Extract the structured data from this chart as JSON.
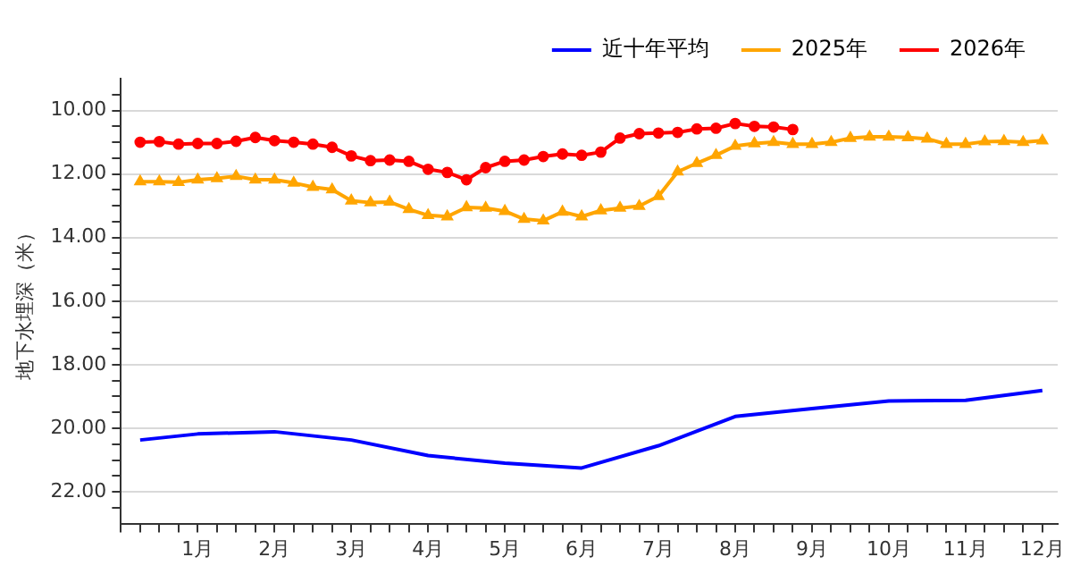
{
  "chart_data": {
    "type": "line",
    "ylabel": "地下水埋深（米）",
    "xlim": [
      0,
      12.2
    ],
    "ylim": [
      23,
      9
    ],
    "xticks": [
      {
        "value": 0,
        "label": null
      },
      {
        "value": 0.25,
        "label": null
      },
      {
        "value": 0.5,
        "label": null
      },
      {
        "value": 0.75,
        "label": null
      },
      {
        "value": 1,
        "label": "1月"
      },
      {
        "value": 1.25,
        "label": null
      },
      {
        "value": 1.5,
        "label": null
      },
      {
        "value": 1.75,
        "label": null
      },
      {
        "value": 2,
        "label": "2月"
      },
      {
        "value": 2.25,
        "label": null
      },
      {
        "value": 2.5,
        "label": null
      },
      {
        "value": 2.75,
        "label": null
      },
      {
        "value": 3,
        "label": "3月"
      },
      {
        "value": 3.25,
        "label": null
      },
      {
        "value": 3.5,
        "label": null
      },
      {
        "value": 3.75,
        "label": null
      },
      {
        "value": 4,
        "label": "4月"
      },
      {
        "value": 4.25,
        "label": null
      },
      {
        "value": 4.5,
        "label": null
      },
      {
        "value": 4.75,
        "label": null
      },
      {
        "value": 5,
        "label": "5月"
      },
      {
        "value": 5.25,
        "label": null
      },
      {
        "value": 5.5,
        "label": null
      },
      {
        "value": 5.75,
        "label": null
      },
      {
        "value": 6,
        "label": "6月"
      },
      {
        "value": 6.25,
        "label": null
      },
      {
        "value": 6.5,
        "label": null
      },
      {
        "value": 6.75,
        "label": null
      },
      {
        "value": 7,
        "label": "7月"
      },
      {
        "value": 7.25,
        "label": null
      },
      {
        "value": 7.5,
        "label": null
      },
      {
        "value": 7.75,
        "label": null
      },
      {
        "value": 8,
        "label": "8月"
      },
      {
        "value": 8.25,
        "label": null
      },
      {
        "value": 8.5,
        "label": null
      },
      {
        "value": 8.75,
        "label": null
      },
      {
        "value": 9,
        "label": "9月"
      },
      {
        "value": 9.25,
        "label": null
      },
      {
        "value": 9.5,
        "label": null
      },
      {
        "value": 9.75,
        "label": null
      },
      {
        "value": 10,
        "label": "10月"
      },
      {
        "value": 10.25,
        "label": null
      },
      {
        "value": 10.5,
        "label": null
      },
      {
        "value": 10.75,
        "label": null
      },
      {
        "value": 11,
        "label": "11月"
      },
      {
        "value": 11.25,
        "label": null
      },
      {
        "value": 11.5,
        "label": null
      },
      {
        "value": 11.75,
        "label": null
      },
      {
        "value": 12,
        "label": "12月"
      }
    ],
    "yticks": [
      {
        "value": 9.5,
        "label": null
      },
      {
        "value": 10,
        "label": "10.00"
      },
      {
        "value": 10.5,
        "label": null
      },
      {
        "value": 11,
        "label": null
      },
      {
        "value": 11.5,
        "label": null
      },
      {
        "value": 12,
        "label": "12.00"
      },
      {
        "value": 12.5,
        "label": null
      },
      {
        "value": 13,
        "label": null
      },
      {
        "value": 13.5,
        "label": null
      },
      {
        "value": 14,
        "label": "14.00"
      },
      {
        "value": 14.5,
        "label": null
      },
      {
        "value": 15,
        "label": null
      },
      {
        "value": 15.5,
        "label": null
      },
      {
        "value": 16,
        "label": "16.00"
      },
      {
        "value": 16.5,
        "label": null
      },
      {
        "value": 17,
        "label": null
      },
      {
        "value": 17.5,
        "label": null
      },
      {
        "value": 18,
        "label": "18.00"
      },
      {
        "value": 18.5,
        "label": null
      },
      {
        "value": 19,
        "label": null
      },
      {
        "value": 19.5,
        "label": null
      },
      {
        "value": 20,
        "label": "20.00"
      },
      {
        "value": 20.5,
        "label": null
      },
      {
        "value": 21,
        "label": null
      },
      {
        "value": 21.5,
        "label": null
      },
      {
        "value": 22,
        "label": "22.00"
      },
      {
        "value": 22.5,
        "label": null
      }
    ],
    "grid": "y",
    "legend": "top right",
    "line_style": "solid",
    "series": [
      {
        "name": "近十年平均",
        "color": "#0000ff",
        "marker": "none",
        "x": [
          0.25,
          1,
          2,
          3,
          4,
          5,
          6,
          7,
          8,
          9,
          10,
          11,
          12
        ],
        "values": [
          20.37,
          20.18,
          20.11,
          20.37,
          20.86,
          21.1,
          21.25,
          20.55,
          19.63,
          19.38,
          19.14,
          19.12,
          18.81
        ]
      },
      {
        "name": "2025年",
        "color": "#ffa500",
        "marker": "triangle",
        "x": [
          0.25,
          0.5,
          0.75,
          1,
          1.25,
          1.5,
          1.75,
          2,
          2.25,
          2.5,
          2.75,
          3,
          3.25,
          3.5,
          3.75,
          4,
          4.25,
          4.5,
          4.75,
          5,
          5.25,
          5.5,
          5.75,
          6,
          6.25,
          6.5,
          6.75,
          7,
          7.25,
          7.5,
          7.75,
          8,
          8.25,
          8.5,
          8.75,
          9,
          9.25,
          9.5,
          9.75,
          10,
          10.25,
          10.5,
          10.75,
          11,
          11.25,
          11.5,
          11.75,
          12
        ],
        "values": [
          12.24,
          12.24,
          12.26,
          12.18,
          12.14,
          12.07,
          12.18,
          12.18,
          12.28,
          12.41,
          12.49,
          12.84,
          12.9,
          12.88,
          13.11,
          13.3,
          13.34,
          13.05,
          13.07,
          13.17,
          13.42,
          13.47,
          13.19,
          13.34,
          13.15,
          13.07,
          13.01,
          12.7,
          11.93,
          11.66,
          11.41,
          11.12,
          11.04,
          11.0,
          11.06,
          11.06,
          11.0,
          10.87,
          10.83,
          10.83,
          10.85,
          10.89,
          11.06,
          11.06,
          10.98,
          10.97,
          11.0,
          10.95
        ]
      },
      {
        "name": "2026年",
        "color": "#ff0000",
        "marker": "circle",
        "x": [
          0.25,
          0.5,
          0.75,
          1,
          1.25,
          1.5,
          1.75,
          2,
          2.25,
          2.5,
          2.75,
          3,
          3.25,
          3.5,
          3.75,
          4,
          4.25,
          4.5,
          4.75,
          5,
          5.25,
          5.5,
          5.75,
          6,
          6.25,
          6.5,
          6.75,
          7,
          7.25,
          7.5,
          7.75,
          8,
          8.25,
          8.5,
          8.75
        ],
        "values": [
          11.0,
          10.98,
          11.06,
          11.04,
          11.04,
          10.97,
          10.85,
          10.95,
          11.0,
          11.06,
          11.16,
          11.43,
          11.58,
          11.56,
          11.6,
          11.85,
          11.95,
          12.18,
          11.8,
          11.6,
          11.56,
          11.45,
          11.37,
          11.41,
          11.31,
          10.87,
          10.73,
          10.71,
          10.69,
          10.58,
          10.56,
          10.41,
          10.5,
          10.52,
          10.6
        ]
      }
    ]
  }
}
